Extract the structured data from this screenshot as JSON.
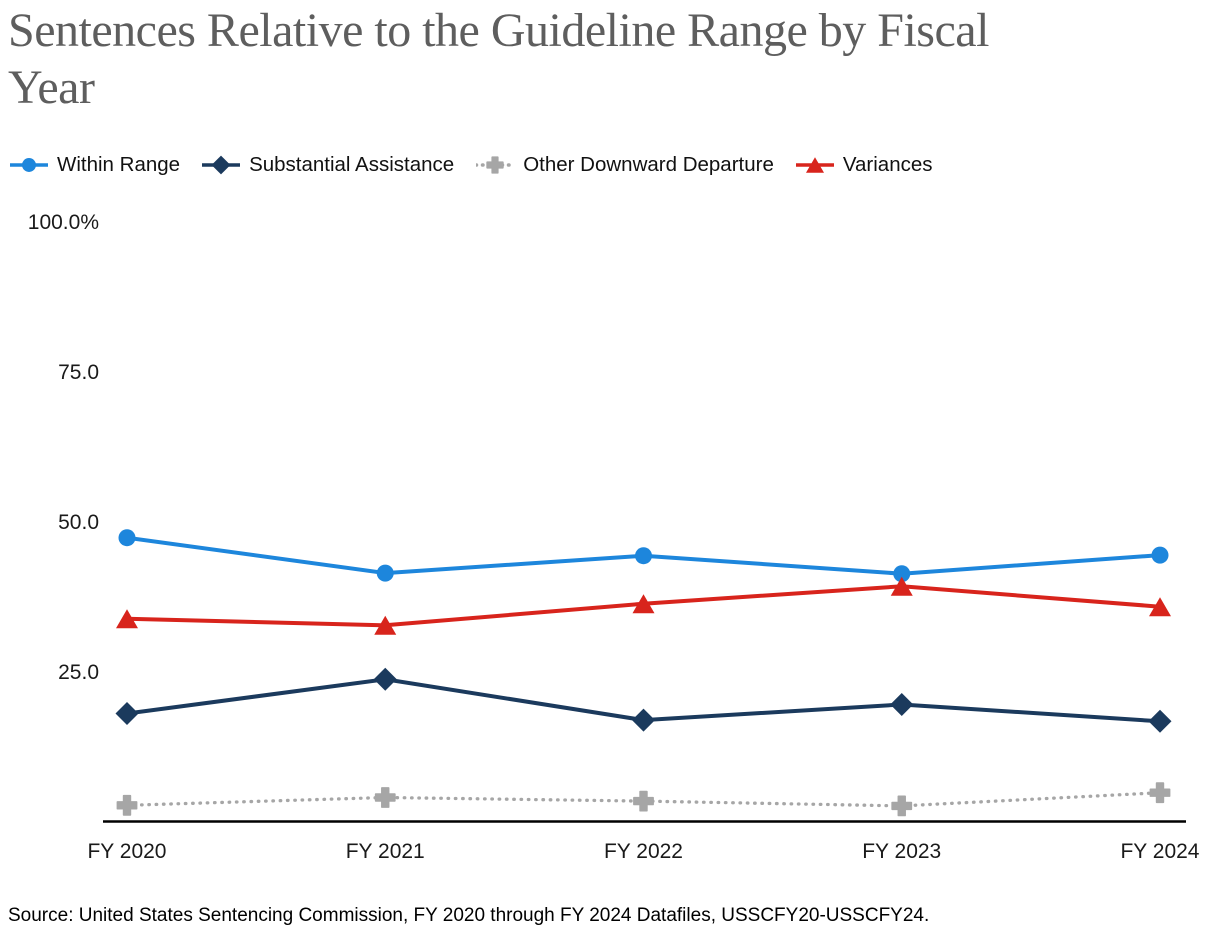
{
  "page": {
    "title_line1": "Sentences Relative to the Guideline Range by Fiscal",
    "title_line2": "Year"
  },
  "source": "Source: United States Sentencing Commission, FY 2020 through FY 2024 Datafiles, USSCFY20-USSCFY24.",
  "chart_data": {
    "type": "line",
    "title": "Sentences Relative to the Guideline Range by Fiscal Year",
    "categories": [
      "FY 2020",
      "FY 2021",
      "FY 2022",
      "FY 2023",
      "FY 2024"
    ],
    "series": [
      {
        "name": "Within Range",
        "color": "#1d86dc",
        "marker": "circle",
        "line_style": "solid",
        "values": [
          47.3,
          41.4,
          44.3,
          41.3,
          44.4
        ]
      },
      {
        "name": "Substantial Assistance",
        "color": "#1b3a5d",
        "marker": "diamond",
        "line_style": "solid",
        "values": [
          18.0,
          23.7,
          16.9,
          19.5,
          16.7
        ]
      },
      {
        "name": "Other Downward Departure",
        "color": "#a6a6a6",
        "marker": "plus",
        "line_style": "dotted",
        "values": [
          2.7,
          4.0,
          3.4,
          2.6,
          4.8
        ]
      },
      {
        "name": "Variances",
        "color": "#d8241c",
        "marker": "triangle",
        "line_style": "solid",
        "values": [
          33.8,
          32.7,
          36.3,
          39.2,
          35.8
        ]
      }
    ],
    "yticks": [
      {
        "label": "100.0%",
        "value": 100
      },
      {
        "label": "75.0",
        "value": 75
      },
      {
        "label": "50.0",
        "value": 50
      },
      {
        "label": "25.0",
        "value": 25
      }
    ],
    "ylim": [
      0,
      100
    ],
    "xlabel": "",
    "ylabel": "",
    "grid": false,
    "legend_position": "top"
  }
}
